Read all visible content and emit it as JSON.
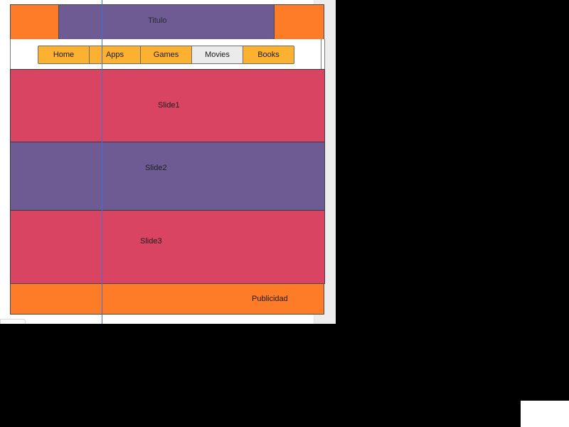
{
  "header": {
    "title": "Titulo"
  },
  "nav": {
    "tabs": [
      {
        "label": "Home",
        "active": false
      },
      {
        "label": "Apps",
        "active": false
      },
      {
        "label": "Games",
        "active": false
      },
      {
        "label": "Movies",
        "active": true
      },
      {
        "label": "Books",
        "active": false
      }
    ]
  },
  "slides": [
    {
      "label": "Slide1"
    },
    {
      "label": "Slide2"
    },
    {
      "label": "Slide3"
    }
  ],
  "footer": {
    "label": "Publicidad"
  },
  "colors": {
    "orange": "#fe7b28",
    "purple": "#6e5b94",
    "crimson": "#d84461",
    "tab_yellow": "#fcb131",
    "tab_active": "#ebebeb",
    "guide_blue": "#3f6fd8",
    "background": "#000000"
  }
}
